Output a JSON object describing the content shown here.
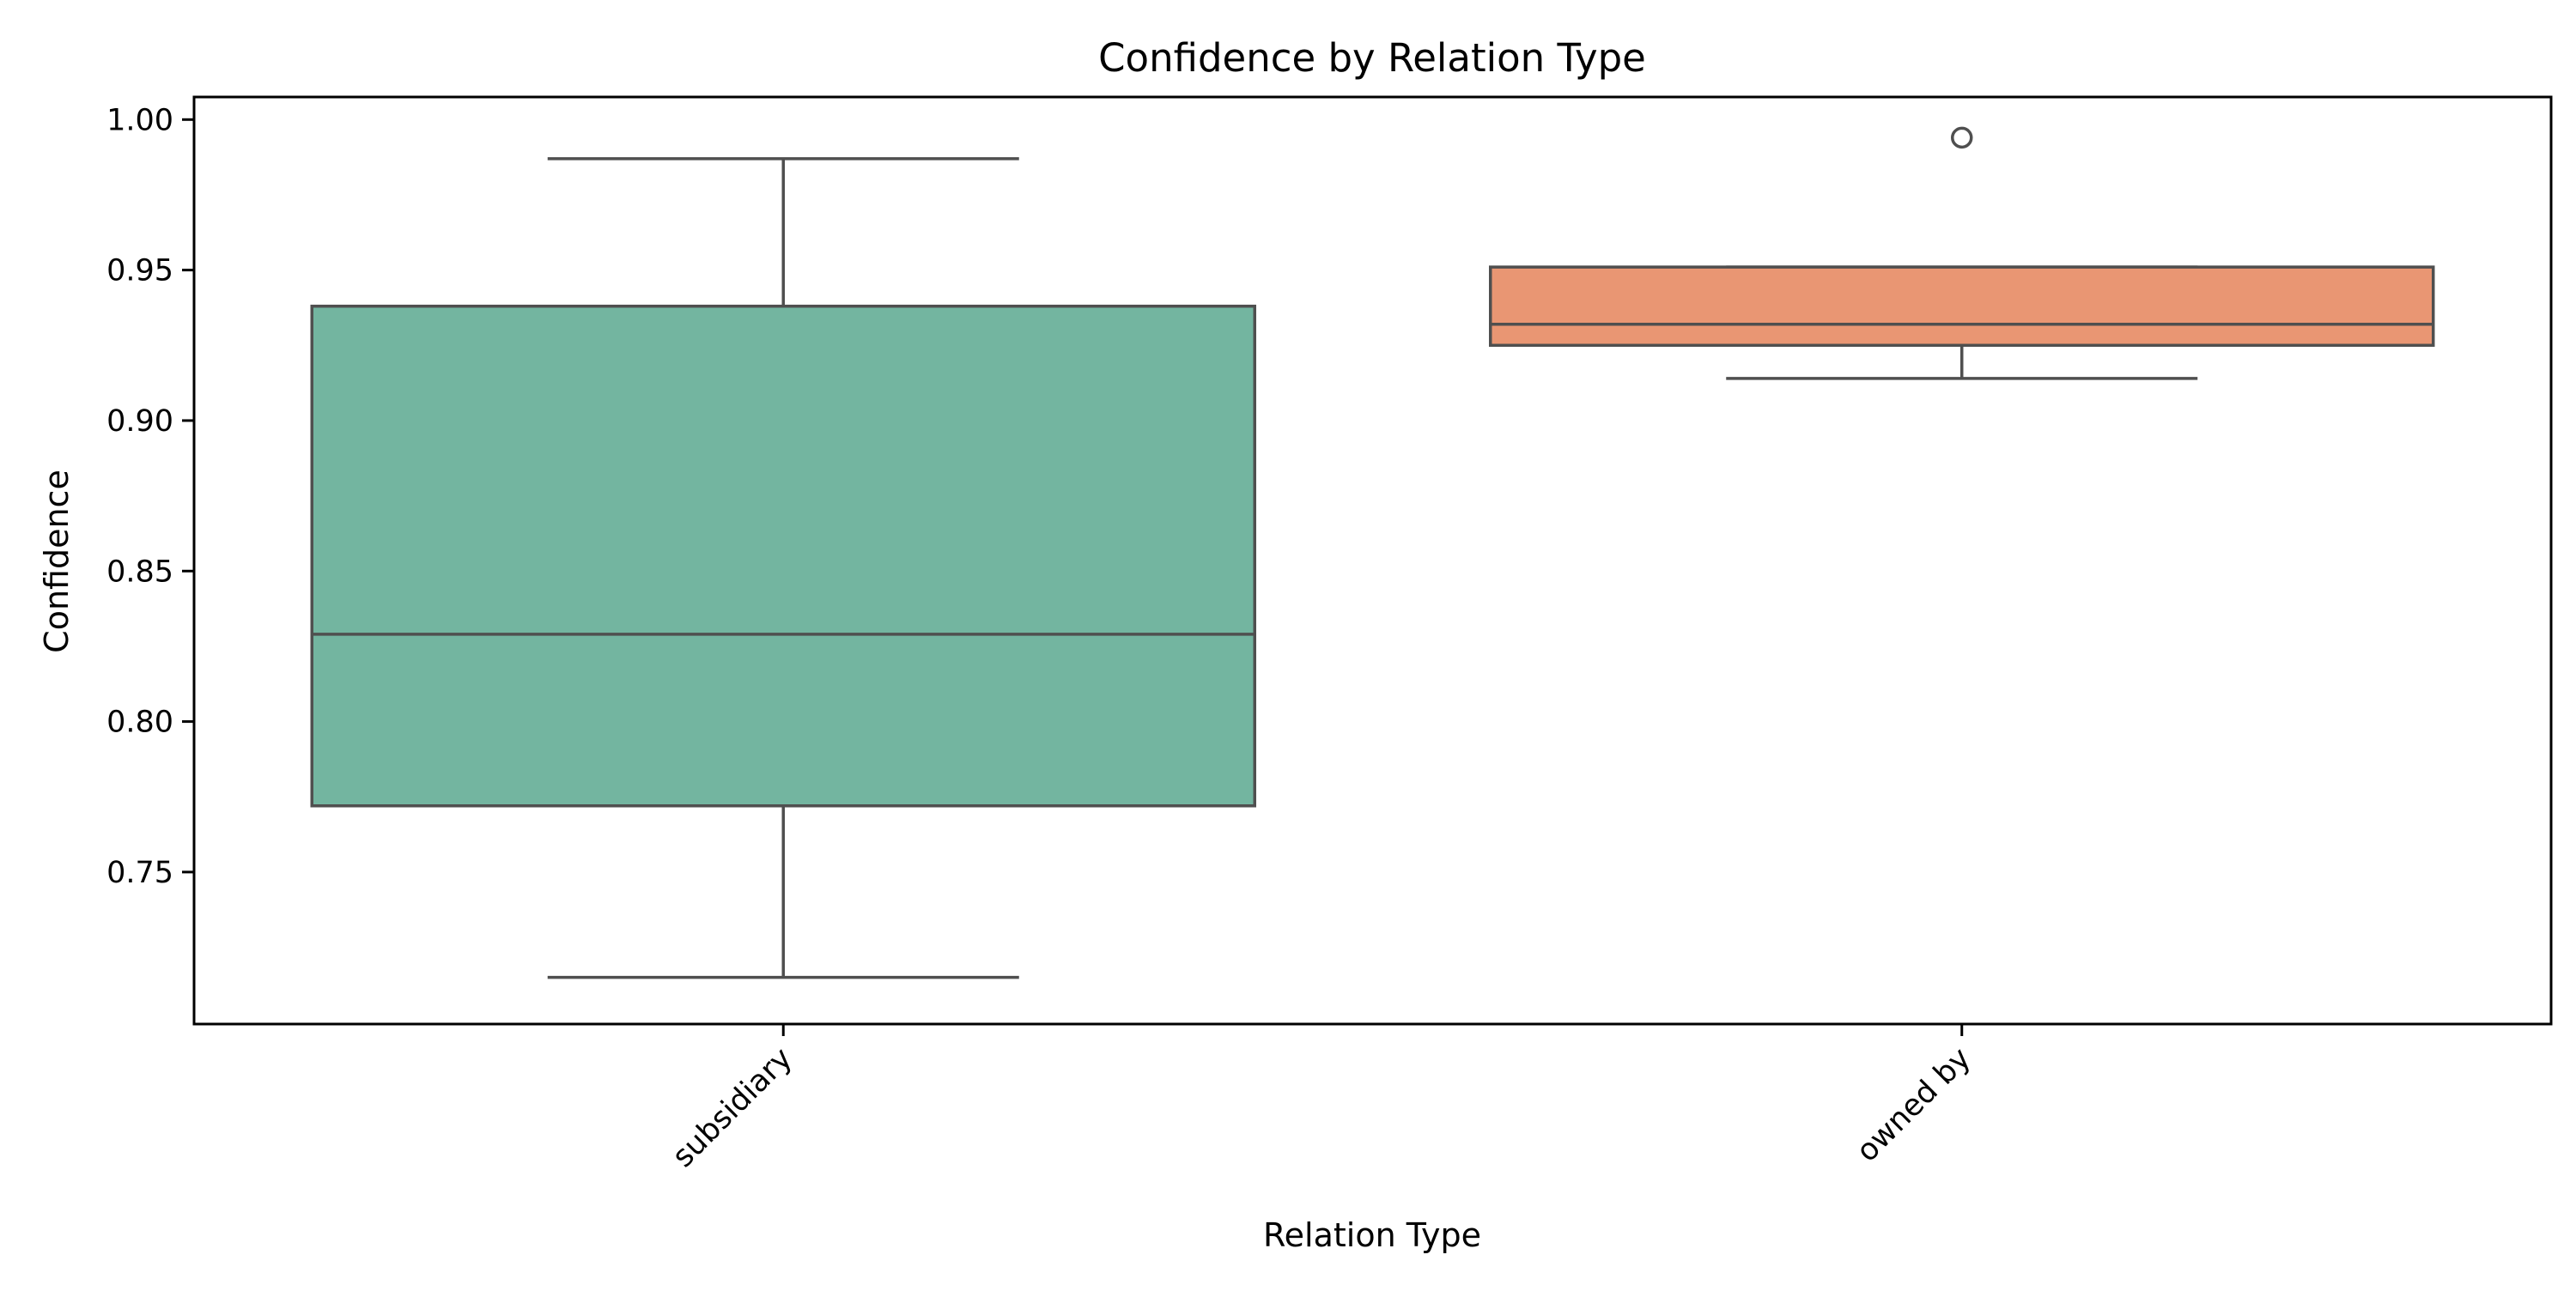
{
  "chart_data": {
    "type": "box",
    "title": "Confidence by Relation Type",
    "xlabel": "Relation Type",
    "ylabel": "Confidence",
    "ylim": [
      0.6995,
      1.0075
    ],
    "yticks": [
      0.75,
      0.8,
      0.85,
      0.9,
      0.95,
      1.0
    ],
    "ytick_labels": [
      "0.75",
      "0.80",
      "0.85",
      "0.90",
      "0.95",
      "1.00"
    ],
    "grid": false,
    "legend": "none",
    "categories": [
      "subsidiary",
      "owned by"
    ],
    "boxes": [
      {
        "category": "subsidiary",
        "whisker_low": 0.715,
        "q1": 0.772,
        "median": 0.829,
        "q3": 0.938,
        "whisker_high": 0.987,
        "outliers": [],
        "color": "#73b5a0"
      },
      {
        "category": "owned by",
        "whisker_low": 0.914,
        "q1": 0.925,
        "median": 0.932,
        "q3": 0.951,
        "whisker_high": 0.951,
        "outliers": [
          0.994
        ],
        "color": "#e99673"
      }
    ],
    "line_color": "#4f4f4f"
  }
}
